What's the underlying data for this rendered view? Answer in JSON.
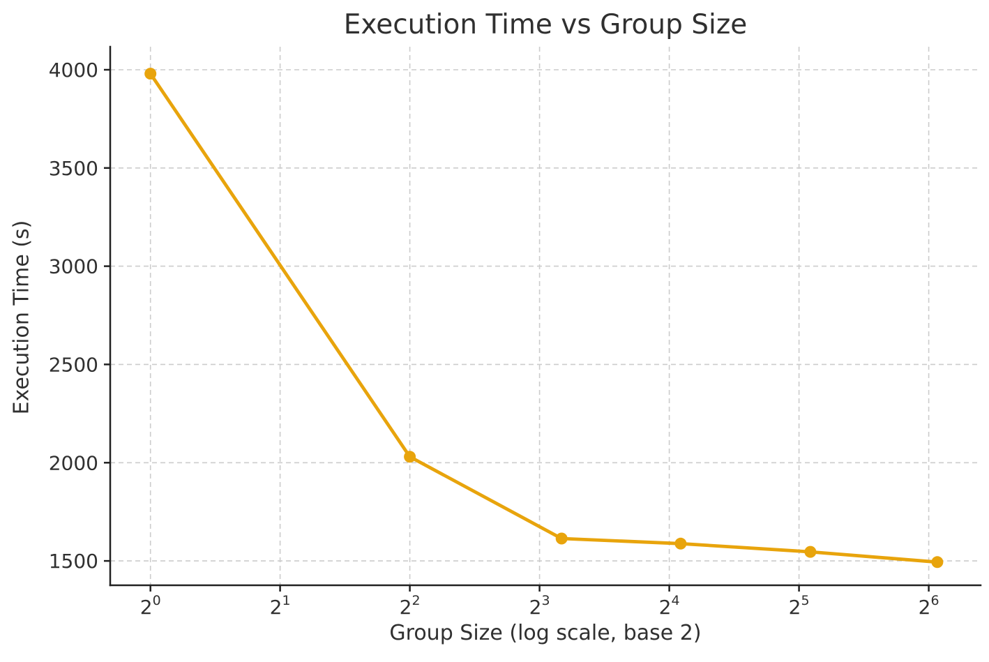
{
  "chart_data": {
    "type": "line",
    "title": "Execution Time vs Group Size",
    "xlabel": "Group Size (log scale, base 2)",
    "ylabel": "Execution Time (s)",
    "x_scale": "log2",
    "x": [
      1,
      4,
      9,
      17,
      34,
      67
    ],
    "y": [
      3980,
      2030,
      1614,
      1588,
      1546,
      1494
    ],
    "x_ticks": [
      {
        "base": "2",
        "exp": "0"
      },
      {
        "base": "2",
        "exp": "1"
      },
      {
        "base": "2",
        "exp": "2"
      },
      {
        "base": "2",
        "exp": "3"
      },
      {
        "base": "2",
        "exp": "4"
      },
      {
        "base": "2",
        "exp": "5"
      },
      {
        "base": "2",
        "exp": "6"
      }
    ],
    "y_ticks": [
      1500,
      2000,
      2500,
      3000,
      3500,
      4000
    ],
    "xlim_log2": [
      -0.31,
      6.4
    ],
    "ylim": [
      1376,
      4117
    ],
    "grid": "dashed",
    "legend": "none",
    "marker": "circle",
    "colors": {
      "line": "#E8A40C",
      "grid": "#cccccc",
      "spine": "#212121",
      "text": "#303030",
      "background": "#ffffff"
    }
  }
}
